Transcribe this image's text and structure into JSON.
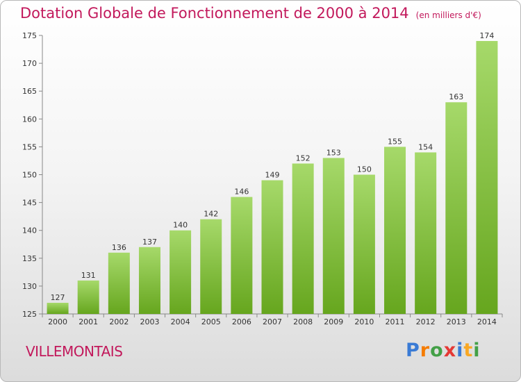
{
  "header": {
    "title": "Dotation Globale de Fonctionnement de 2000 à 2014",
    "subtitle": "(en milliers d'€)"
  },
  "footer": {
    "place": "VILLEMONTAIS",
    "brand": "Proxiti"
  },
  "colors": {
    "title": "#c2185b",
    "bar_light": "#a6d96a",
    "bar_dark": "#66a61e"
  },
  "chart_data": {
    "type": "bar",
    "categories": [
      "2000",
      "2001",
      "2002",
      "2003",
      "2004",
      "2005",
      "2006",
      "2007",
      "2008",
      "2009",
      "2010",
      "2011",
      "2012",
      "2013",
      "2014"
    ],
    "values": [
      127,
      131,
      136,
      137,
      140,
      142,
      146,
      149,
      152,
      153,
      150,
      155,
      154,
      163,
      174
    ],
    "title": "Dotation Globale de Fonctionnement de 2000 à 2014",
    "ylim": [
      125,
      175
    ],
    "yticks": [
      125,
      130,
      135,
      140,
      145,
      150,
      155,
      160,
      165,
      170,
      175
    ],
    "grid": false,
    "legend": "none"
  }
}
